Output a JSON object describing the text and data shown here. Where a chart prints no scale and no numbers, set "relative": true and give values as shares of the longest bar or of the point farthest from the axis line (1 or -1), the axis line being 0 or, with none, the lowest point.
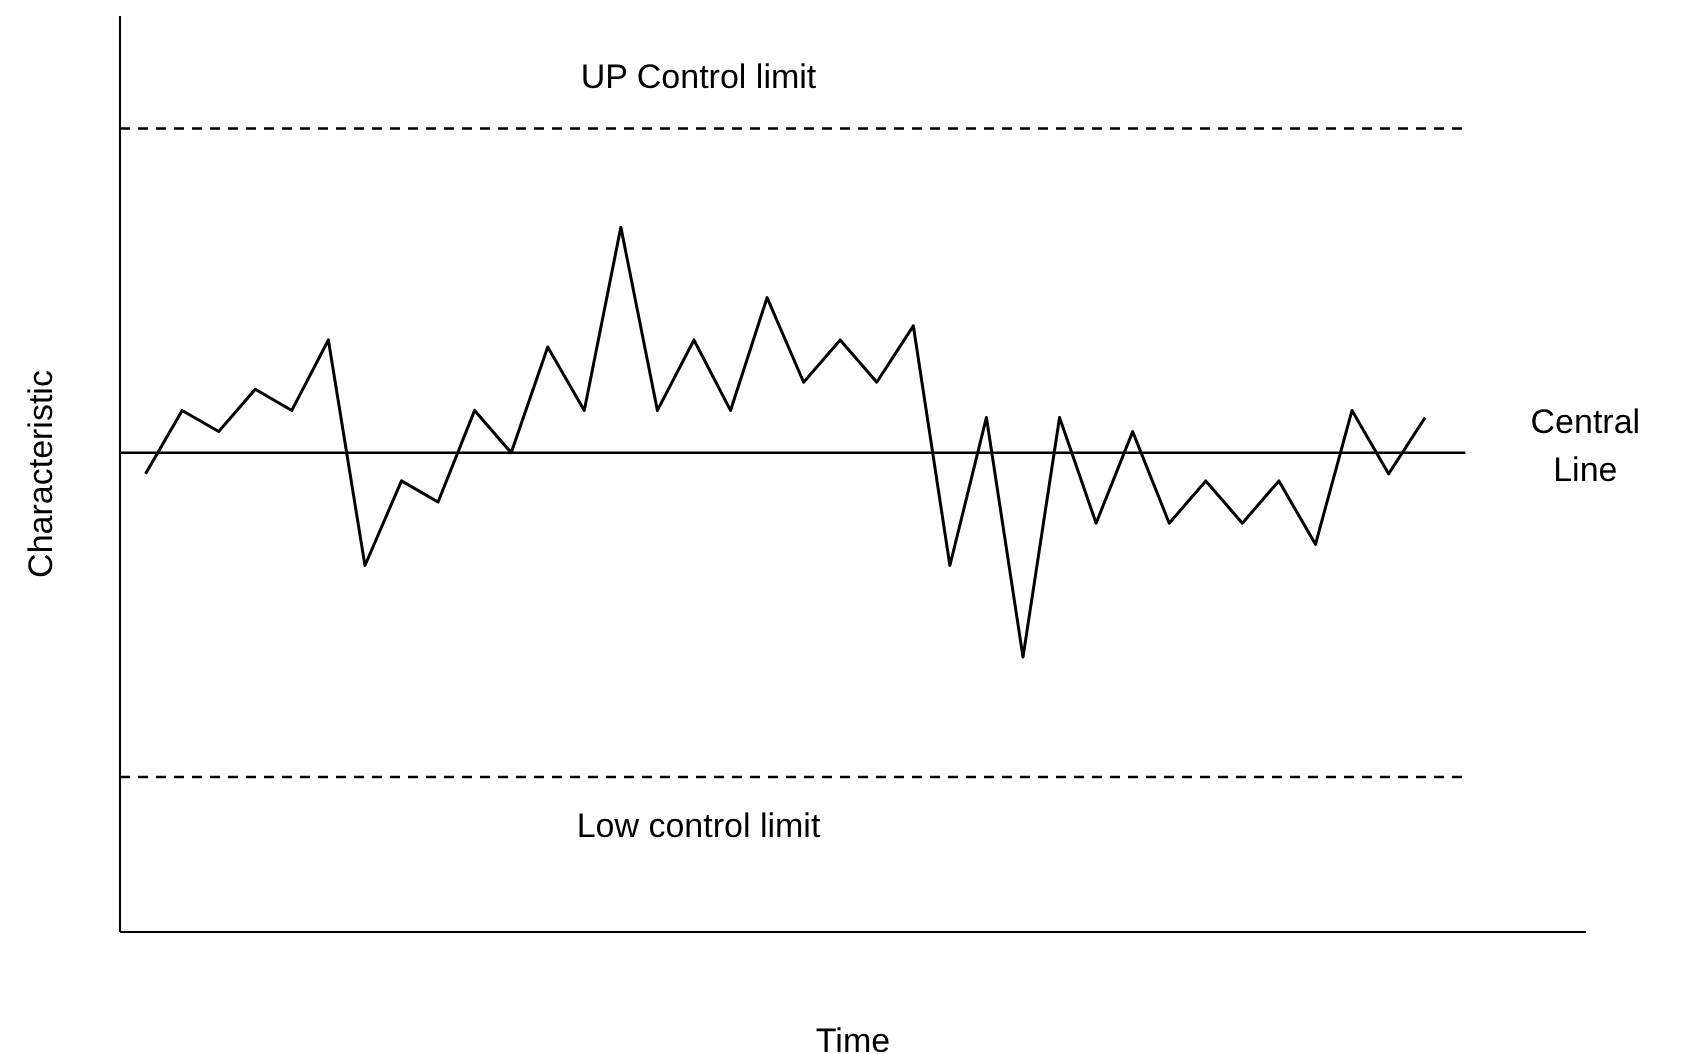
{
  "chart_data": {
    "type": "line",
    "relative": true,
    "xlabel": "Time",
    "ylabel": "Characteristic",
    "color": "#000000",
    "marker": "none",
    "line_style": "solid",
    "categories": [
      null,
      null,
      null,
      null,
      null,
      null,
      null,
      null,
      null,
      null,
      null,
      null,
      null,
      null,
      null,
      null,
      null,
      null,
      null,
      null,
      null,
      null,
      null,
      null,
      null,
      null,
      null,
      null,
      null,
      null,
      null,
      null,
      null,
      null,
      null,
      null
    ],
    "values": [
      0.65,
      0.74,
      0.71,
      0.77,
      0.74,
      0.84,
      0.52,
      0.64,
      0.61,
      0.74,
      0.68,
      0.83,
      0.74,
      1,
      0.74,
      0.84,
      0.74,
      0.9,
      0.78,
      0.84,
      0.78,
      0.86,
      0.52,
      0.73,
      0.39,
      0.73,
      0.58,
      0.71,
      0.58,
      0.64,
      0.58,
      0.64,
      0.55,
      0.74,
      0.65,
      0.73
    ],
    "ref_lines": [
      {
        "axis": "y",
        "value": 1.14,
        "label": "UP Control limit",
        "line_style": "dashed",
        "color": "#000000"
      },
      {
        "axis": "y",
        "value": 0.68,
        "label": "Central Line",
        "line_style": "solid",
        "color": "#000000"
      },
      {
        "axis": "y",
        "value": 0.22,
        "label": "Low control limit",
        "line_style": "dashed",
        "color": "#000000"
      }
    ]
  }
}
